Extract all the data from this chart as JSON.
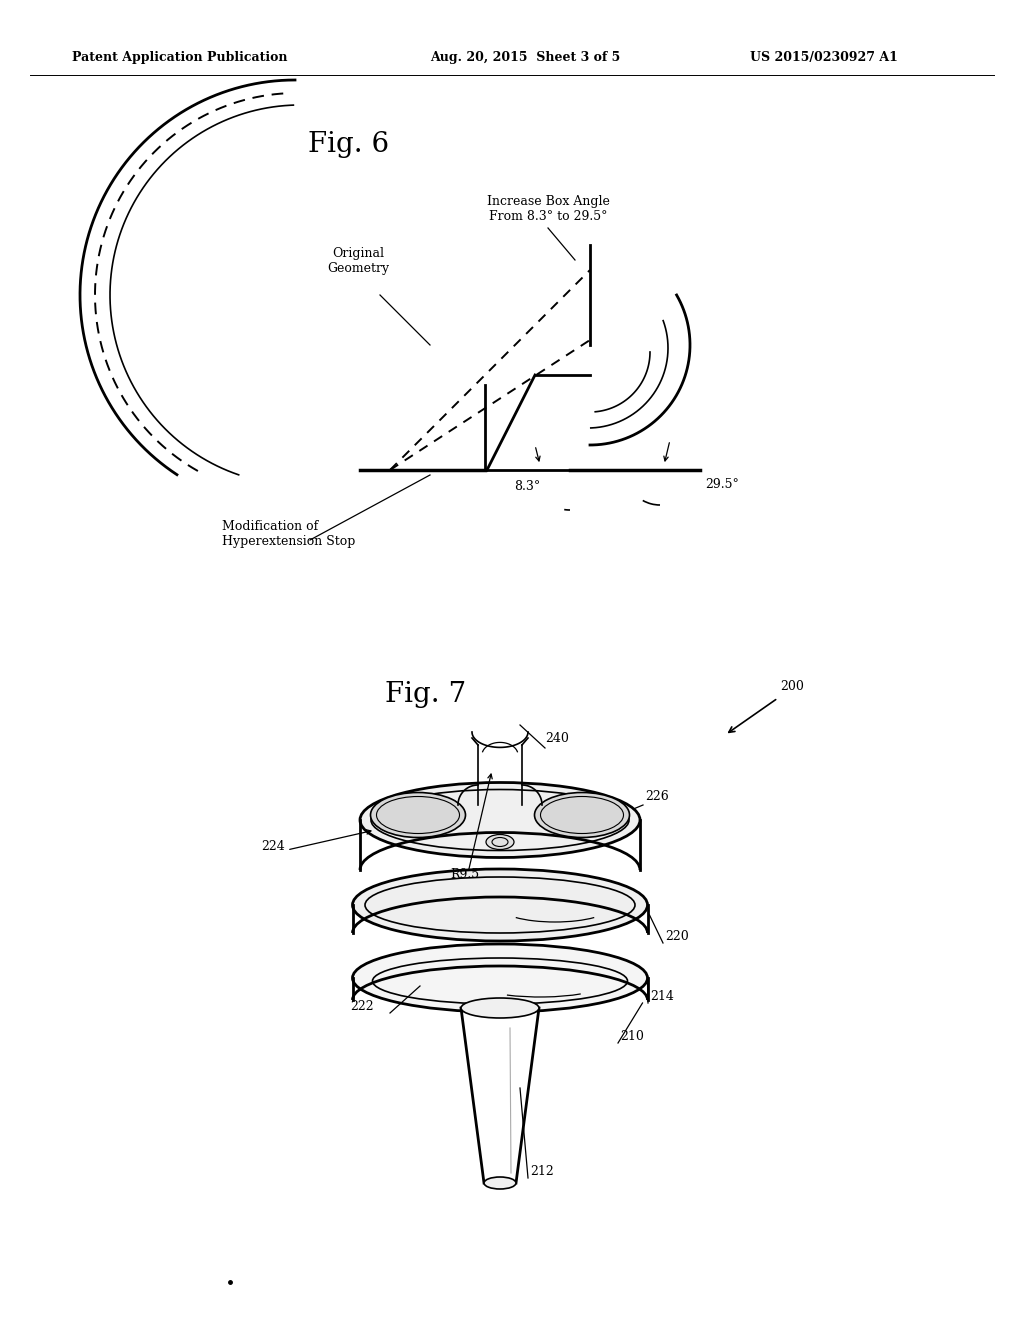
{
  "background_color": "#ffffff",
  "text_color": "#000000",
  "header_left": "Patent Application Publication",
  "header_center": "Aug. 20, 2015  Sheet 3 of 5",
  "header_right": "US 2015/0230927 A1",
  "fig6_title": "Fig. 6",
  "fig7_title": "Fig. 7",
  "fig6_labels": {
    "increase_box": "Increase Box Angle",
    "from_to": "From 8.3° to 29.5°",
    "original_geometry": "Original\nGeometry",
    "mod_hyperext": "Modification of\nHyperextension Stop",
    "angle_83": "8.3°",
    "angle_295": "29.5°"
  },
  "fig7_labels": {
    "ref200": "200",
    "ref210": "210",
    "ref212": "212",
    "ref214": "214",
    "ref220": "220",
    "ref222": "222",
    "ref224": "224",
    "ref226": "226",
    "ref240": "240",
    "r95": "R9.5"
  }
}
